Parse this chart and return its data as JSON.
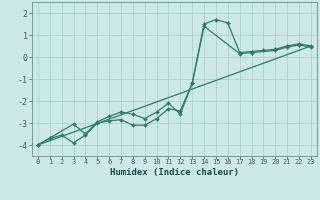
{
  "xlabel": "Humidex (Indice chaleur)",
  "bg_color": "#cce8e8",
  "line_color": "#2e7b6e",
  "grid_color": "#aacccc",
  "xlim": [
    -0.5,
    23.5
  ],
  "ylim": [
    -4.5,
    2.5
  ],
  "yticks": [
    -4,
    -3,
    -2,
    -1,
    0,
    1,
    2
  ],
  "xticks": [
    0,
    1,
    2,
    3,
    4,
    5,
    6,
    7,
    8,
    9,
    10,
    11,
    12,
    13,
    14,
    15,
    16,
    17,
    18,
    19,
    20,
    21,
    22,
    23
  ],
  "line1_x": [
    0,
    1,
    2,
    3,
    4,
    5,
    6,
    7,
    8,
    9,
    10,
    11,
    12,
    13,
    14,
    15,
    16,
    17,
    18,
    19,
    20,
    21,
    22,
    23
  ],
  "line1_y": [
    -4.0,
    -3.7,
    -3.55,
    -3.9,
    -3.55,
    -3.0,
    -2.9,
    -2.85,
    -3.1,
    -3.1,
    -2.8,
    -2.35,
    -2.45,
    -1.2,
    1.5,
    1.7,
    1.55,
    0.2,
    0.25,
    0.3,
    0.35,
    0.5,
    0.6,
    0.5
  ],
  "line2_x": [
    0,
    3,
    4,
    5,
    6,
    7,
    8,
    9,
    10,
    11,
    12,
    13,
    14,
    17,
    18,
    20,
    21,
    22,
    23
  ],
  "line2_y": [
    -4.0,
    -3.05,
    -3.5,
    -2.95,
    -2.7,
    -2.5,
    -2.6,
    -2.8,
    -2.5,
    -2.1,
    -2.6,
    -1.2,
    1.4,
    0.15,
    0.2,
    0.3,
    0.45,
    0.55,
    0.45
  ],
  "line3_x": [
    0,
    23
  ],
  "line3_y": [
    -4.0,
    0.5
  ],
  "tick_fontsize": 5.0,
  "ylabel_fontsize": 6.0,
  "xlabel_fontsize": 6.5
}
